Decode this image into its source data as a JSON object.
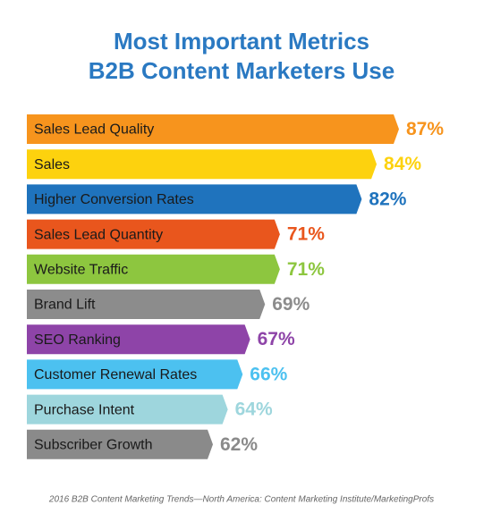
{
  "chart_data": {
    "type": "bar",
    "orientation": "horizontal",
    "title": [
      "Most Important Metrics",
      "B2B Content Marketers Use"
    ],
    "categories": [
      "Sales Lead Quality",
      "Sales",
      "Higher Conversion Rates",
      "Sales Lead Quantity",
      "Website Traffic",
      "Brand Lift",
      "SEO Ranking",
      "Customer Renewal Rates",
      "Purchase Intent",
      "Subscriber Growth"
    ],
    "values": [
      87,
      84,
      82,
      71,
      71,
      69,
      67,
      66,
      64,
      62
    ],
    "value_labels": [
      "87%",
      "84%",
      "82%",
      "71%",
      "71%",
      "69%",
      "67%",
      "66%",
      "64%",
      "62%"
    ],
    "colors": [
      "#f7941d",
      "#fdd20e",
      "#1f73bd",
      "#e9561d",
      "#8dc63f",
      "#8c8c8c",
      "#8e44a8",
      "#4cc1f0",
      "#9ed6dd",
      "#8a8a8a"
    ],
    "xlim": [
      37,
      87
    ],
    "source": "2016 B2B Content Marketing Trends—North America: Content Marketing Institute/MarketingProfs"
  }
}
